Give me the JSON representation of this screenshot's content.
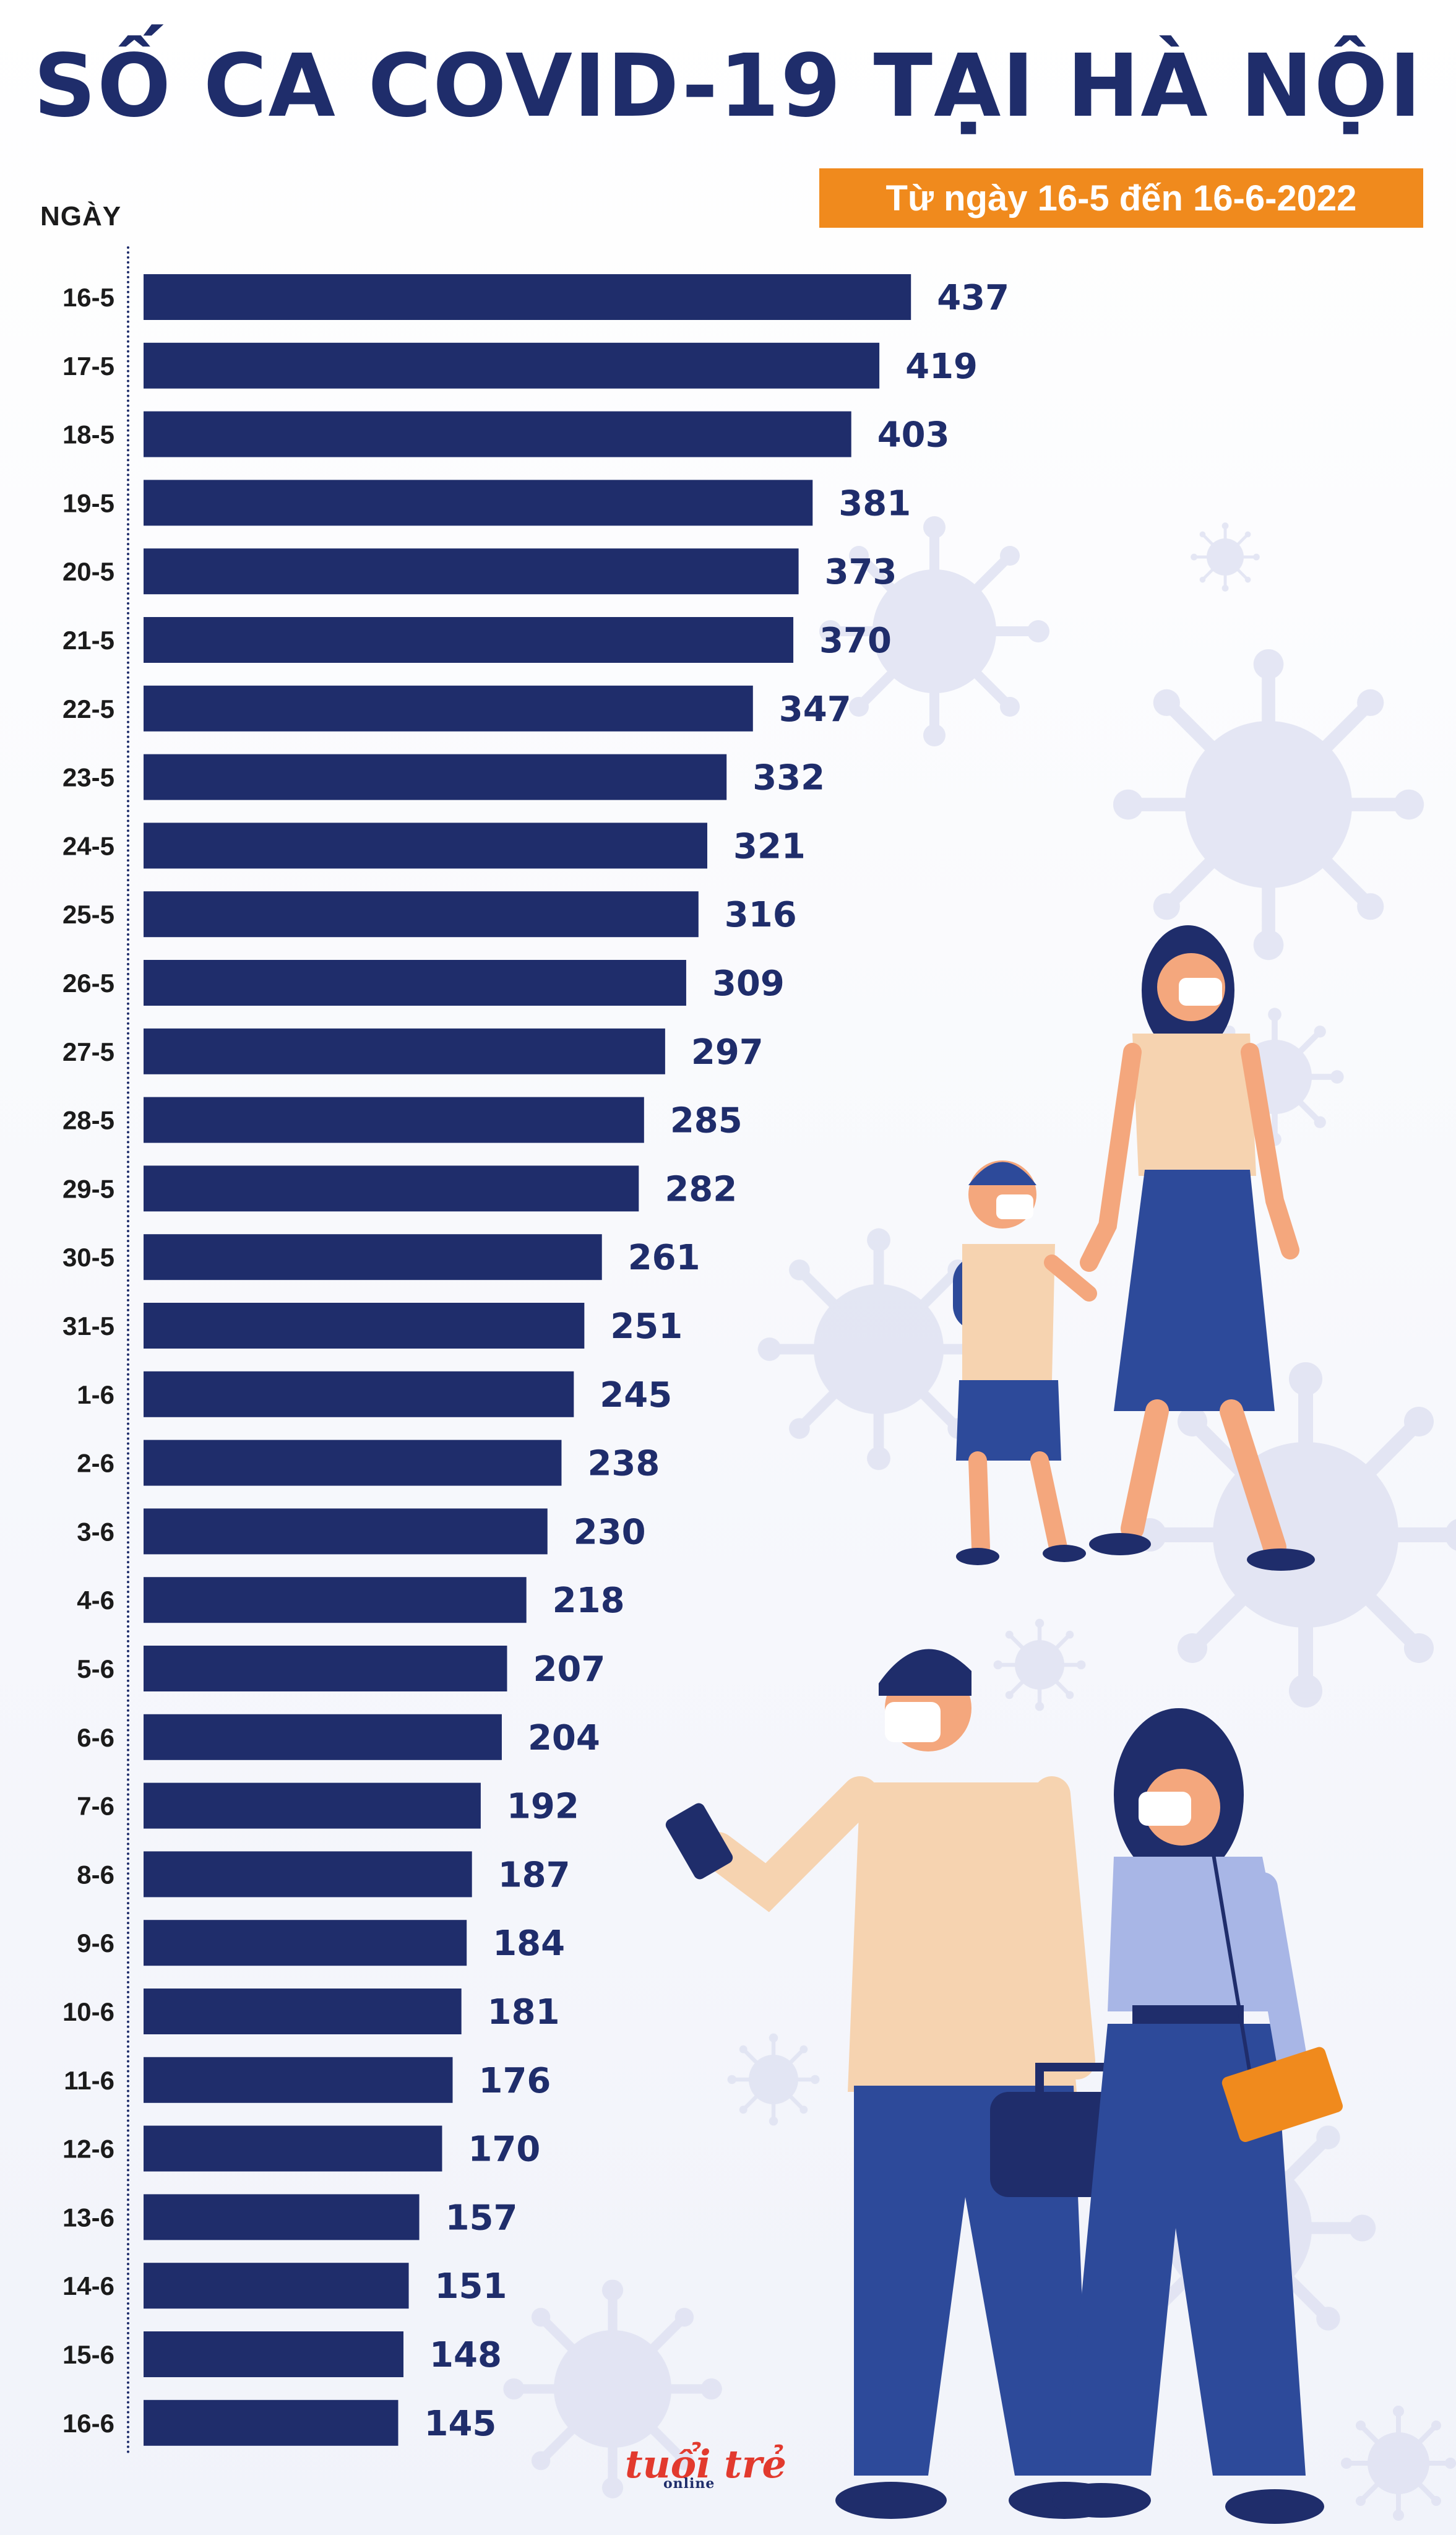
{
  "title": "SỐ CA COVID-19 TẠI HÀ NỘI",
  "subtitle": "Từ ngày 16-5 đến 16-6-2022",
  "logo": {
    "text": "tuổi trẻ",
    "sub": "online"
  },
  "colors": {
    "bar": "#1f2d6b",
    "accent": "#f08a1d",
    "label": "#1f2d6b",
    "date": "#1b1b1b"
  },
  "chart_data": {
    "type": "bar",
    "orientation": "horizontal",
    "ylabel": "NGÀY",
    "categories": [
      "16-5",
      "17-5",
      "18-5",
      "19-5",
      "20-5",
      "21-5",
      "22-5",
      "23-5",
      "24-5",
      "25-5",
      "26-5",
      "27-5",
      "28-5",
      "29-5",
      "30-5",
      "31-5",
      "1-6",
      "2-6",
      "3-6",
      "4-6",
      "5-6",
      "6-6",
      "7-6",
      "8-6",
      "9-6",
      "10-6",
      "11-6",
      "12-6",
      "13-6",
      "14-6",
      "15-6",
      "16-6"
    ],
    "values": [
      437,
      419,
      403,
      381,
      373,
      370,
      347,
      332,
      321,
      316,
      309,
      297,
      285,
      282,
      261,
      251,
      245,
      238,
      230,
      218,
      207,
      204,
      192,
      187,
      184,
      181,
      176,
      170,
      157,
      151,
      148,
      145
    ],
    "data_labels": true,
    "grid": false
  }
}
